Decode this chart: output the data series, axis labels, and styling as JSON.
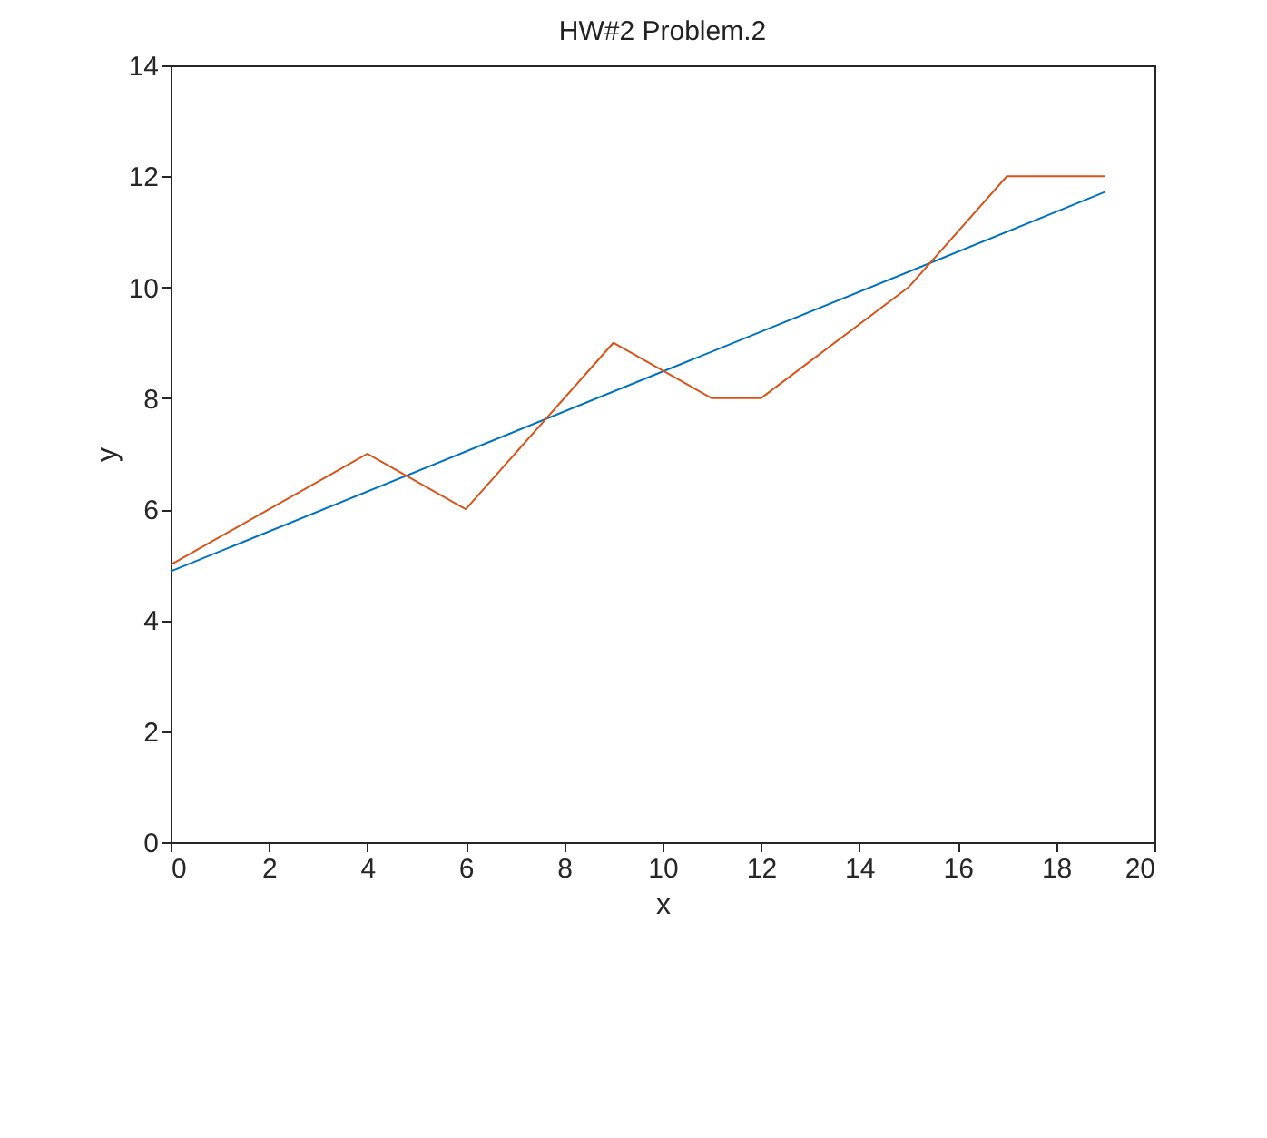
{
  "chart_data": {
    "type": "line",
    "title": "HW#2 Problem.2",
    "xlabel": "x",
    "ylabel": "y",
    "xlim": [
      0,
      20
    ],
    "xticks": [
      0,
      2,
      4,
      6,
      8,
      10,
      12,
      14,
      16,
      18,
      20
    ],
    "ylim": [
      0,
      14
    ],
    "yticks": [
      0,
      2,
      4,
      6,
      8,
      10,
      12,
      14
    ],
    "grid": false,
    "marker": "none",
    "line_style": "solid",
    "series": [
      {
        "color": "#0072bd",
        "x": [
          0,
          19
        ],
        "values": [
          4.88,
          11.72
        ]
      },
      {
        "color": "#d95319",
        "x": [
          0,
          4,
          6,
          9,
          11,
          12,
          15,
          17,
          19
        ],
        "values": [
          5,
          7,
          6,
          9,
          8,
          8,
          10,
          12,
          12
        ]
      }
    ]
  }
}
